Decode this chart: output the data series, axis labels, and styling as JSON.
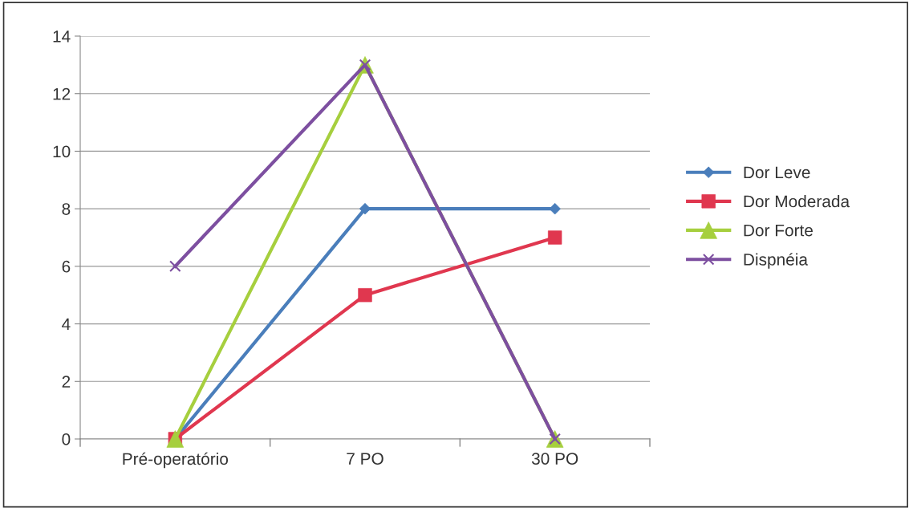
{
  "chart_data": {
    "type": "line",
    "categories": [
      "Pré-operatório",
      "7 PO",
      "30 PO"
    ],
    "series": [
      {
        "name": "Dor Leve",
        "color": "#4a7ebb",
        "marker": "diamond",
        "values": [
          0,
          8,
          8
        ]
      },
      {
        "name": "Dor Moderada",
        "color": "#e0374f",
        "marker": "square",
        "values": [
          0,
          5,
          7
        ]
      },
      {
        "name": "Dor Forte",
        "color": "#a6cf3e",
        "marker": "triangle",
        "values": [
          0,
          13,
          0
        ]
      },
      {
        "name": "Dispnéia",
        "color": "#7d4fa0",
        "marker": "cross",
        "values": [
          6,
          13,
          0
        ]
      }
    ],
    "ylim": [
      0,
      14
    ],
    "yticks": [
      0,
      2,
      4,
      6,
      8,
      10,
      12,
      14
    ],
    "grid": "y",
    "legend": "right",
    "line_style": "solid"
  }
}
